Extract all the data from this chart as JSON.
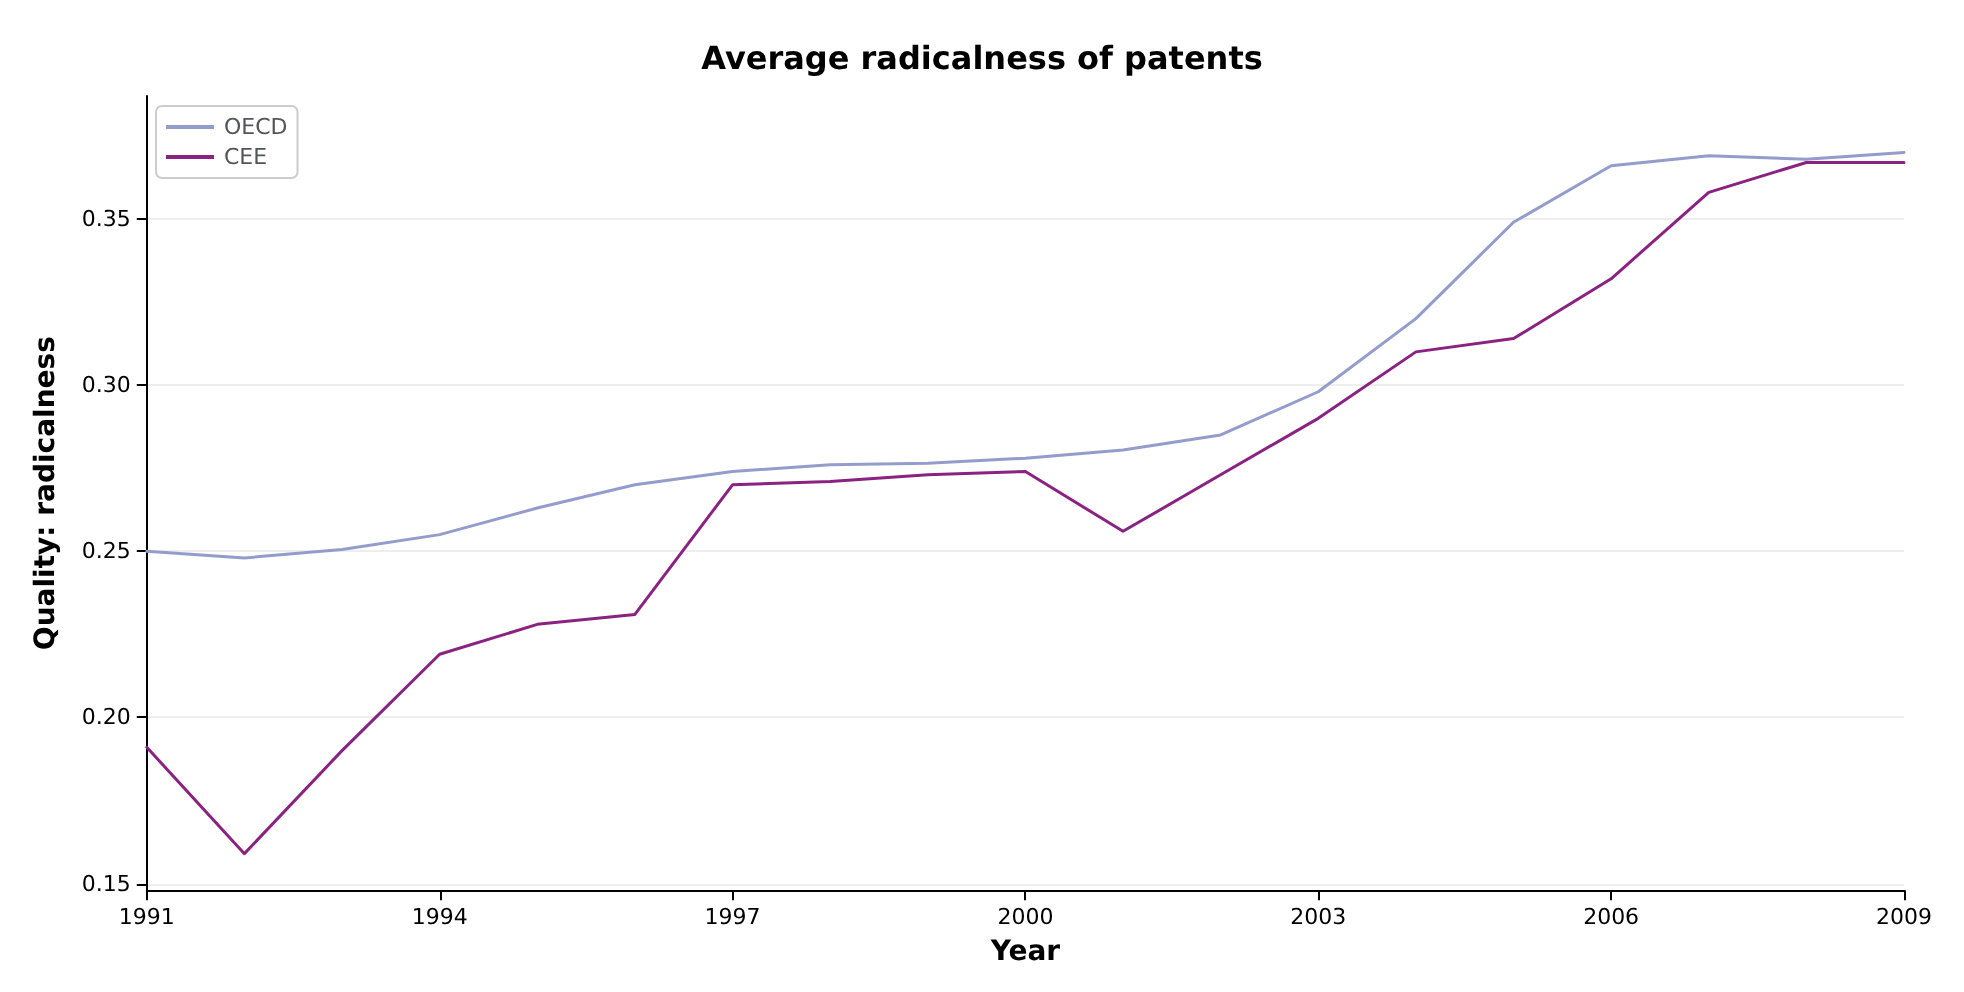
{
  "chart_data": {
    "type": "line",
    "title": "Average radicalness of patents",
    "xlabel": "Year",
    "ylabel": "Quality: radicalness",
    "x": [
      1991,
      1992,
      1993,
      1994,
      1995,
      1996,
      1997,
      1998,
      1999,
      2000,
      2001,
      2002,
      2003,
      2004,
      2005,
      2006,
      2007,
      2008,
      2009
    ],
    "series": [
      {
        "name": "OECD",
        "color": "#949ccc",
        "values": [
          0.25,
          0.248,
          0.2505,
          0.255,
          0.263,
          0.27,
          0.274,
          0.276,
          0.2765,
          0.278,
          0.2805,
          0.285,
          0.298,
          0.32,
          0.349,
          0.366,
          0.369,
          0.368,
          0.37
        ]
      },
      {
        "name": "CEE",
        "color": "#8a2282",
        "values": [
          0.191,
          0.159,
          0.19,
          0.219,
          0.228,
          0.231,
          0.27,
          0.271,
          0.273,
          0.274,
          0.256,
          0.273,
          0.29,
          0.31,
          0.314,
          0.332,
          0.358,
          0.367,
          0.367
        ]
      }
    ],
    "xlim": [
      1991,
      2009
    ],
    "xticks": [
      1991,
      1994,
      1997,
      2000,
      2003,
      2006,
      2009
    ],
    "ylim": [
      0.148,
      0.387
    ],
    "yticks": [
      {
        "value": 0.15,
        "label": "0.15"
      },
      {
        "value": 0.2,
        "label": "0.20"
      },
      {
        "value": 0.25,
        "label": "0.25"
      },
      {
        "value": 0.3,
        "label": "0.30"
      },
      {
        "value": 0.35,
        "label": "0.35"
      }
    ],
    "grid": "y",
    "legend": "top left",
    "marker": "none",
    "line_style": "solid"
  }
}
